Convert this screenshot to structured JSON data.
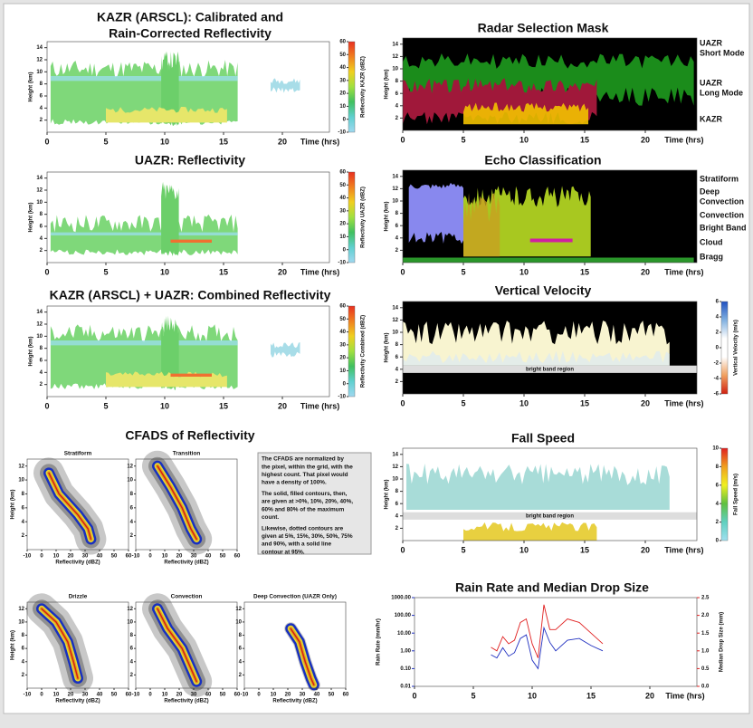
{
  "left_panels": [
    {
      "title": [
        "KAZR (ARSCL):  Calibrated and",
        "Rain-Corrected Reflectivity"
      ],
      "ylabel": "Height (km)",
      "yticks": [
        14,
        12,
        10,
        8,
        6,
        4,
        2
      ],
      "colorbar_label": "Reflectivity KAZR (dBZ)",
      "colorbar_ticks": [
        60,
        50,
        40,
        30,
        20,
        10,
        0,
        -10
      ],
      "xticks": [
        0,
        5,
        10,
        15,
        20
      ],
      "xlabel": "Time (hrs)"
    },
    {
      "title": [
        "UAZR:  Reflectivity"
      ],
      "ylabel": "Height (km)",
      "yticks": [
        14,
        12,
        10,
        8,
        6,
        4,
        2
      ],
      "colorbar_label": "Reflectivity UAZR (dBZ)",
      "colorbar_ticks": [
        60,
        50,
        40,
        30,
        20,
        10,
        0,
        -10
      ],
      "xticks": [
        0,
        5,
        10,
        15,
        20
      ],
      "xlabel": "Time (hrs)"
    },
    {
      "title": [
        "KAZR (ARSCL) + UAZR:  Combined Reflectivity"
      ],
      "ylabel": "Height (km)",
      "yticks": [
        14,
        12,
        10,
        8,
        6,
        4,
        2
      ],
      "colorbar_label": "Reflectivity Combined (dBZ)",
      "colorbar_ticks": [
        60,
        50,
        40,
        30,
        20,
        10,
        0,
        -10
      ],
      "xticks": [
        0,
        5,
        10,
        15,
        20
      ],
      "xlabel": "Time (hrs)"
    }
  ],
  "right_panels": [
    {
      "title": [
        "Radar Selection Mask"
      ],
      "ylabel": "Height (km)",
      "yticks": [
        14,
        12,
        10,
        8,
        6,
        4,
        2
      ],
      "xticks": [
        0,
        5,
        10,
        15,
        20
      ],
      "xlabel": "Time (hrs)",
      "legend": [
        {
          "label": [
            "UAZR",
            "Short Mode"
          ],
          "color": "#f2c200"
        },
        {
          "label": [
            "UAZR",
            "Long Mode"
          ],
          "color": "#a0183a"
        },
        {
          "label": [
            "KAZR"
          ],
          "color": "#1b8c1b"
        }
      ]
    },
    {
      "title": [
        "Echo Classification"
      ],
      "ylabel": "Height (km)",
      "yticks": [
        14,
        12,
        10,
        8,
        6,
        4,
        2
      ],
      "xticks": [
        0,
        5,
        10,
        15,
        20
      ],
      "xlabel": "Time (hrs)",
      "legend": [
        {
          "label": [
            "Stratiform"
          ],
          "color": "#66b82a"
        },
        {
          "label": [
            "Deep",
            "Convection"
          ],
          "color": "#f04a1e"
        },
        {
          "label": [
            "Convection"
          ],
          "color": "#f08a00"
        },
        {
          "label": [
            "Bright Band"
          ],
          "color": "#b01050"
        },
        {
          "label": [
            "Cloud"
          ],
          "color": "#8888ee"
        },
        {
          "label": [
            "Bragg"
          ],
          "color": "#2a962a"
        }
      ]
    },
    {
      "title": [
        "Vertical Velocity"
      ],
      "ylabel": "Height (km)",
      "yticks": [
        14,
        12,
        10,
        8,
        6,
        4,
        2
      ],
      "xticks": [
        0,
        5,
        10,
        15,
        20
      ],
      "xlabel": "Time (hrs)",
      "colorbar_label": "Vertical Velocity (m/s)",
      "colorbar_ticks": [
        6,
        4,
        2,
        0,
        -2,
        -4,
        -6
      ],
      "band_label": "bright band region"
    },
    {
      "title": [
        "Fall Speed"
      ],
      "ylabel": "Height (km)",
      "yticks": [
        14,
        12,
        10,
        8,
        6,
        4,
        2
      ],
      "xticks": [
        0,
        5,
        10,
        15,
        20
      ],
      "xlabel": "Time (hrs)",
      "colorbar_label": "Fall Speed (m/s)",
      "colorbar_ticks": [
        10,
        8,
        6,
        4,
        2,
        0
      ],
      "band_label": "bright band region"
    }
  ],
  "cfads": {
    "title": "CFADS of Reflectivity",
    "yticks": [
      12,
      10,
      8,
      6,
      4,
      2
    ],
    "xticks": [
      -10,
      0,
      10,
      20,
      30,
      40,
      50,
      60
    ],
    "xlabel": "Reflectivity (dBZ)",
    "ylabel": "Height (km)",
    "panels": [
      {
        "title": "Stratiform"
      },
      {
        "title": "Transition"
      },
      {
        "title": "Drizzle"
      },
      {
        "title": "Convection"
      },
      {
        "title": "Deep Convection (UAZR Only)"
      }
    ],
    "note": [
      [
        "The CFADS are normalized by",
        "the pixel, within the grid, with the",
        "highest count. That pixel would",
        "have a density of 100%."
      ],
      [
        "The solid, filled contours, then,",
        "are given at >0%, 10%, 20%, 40%,",
        "60% and 80% of the maximum",
        "count."
      ],
      [
        "Likewise, dotted contours are",
        "given at 5%, 15%, 30%, 50%, 75%",
        "and 90%, with a solid line",
        "contour at 95%."
      ]
    ]
  },
  "chart_data": {
    "type": "line",
    "title": "Rain Rate and Median Drop Size",
    "ylabel": "Rain Rate (mm/hr)",
    "y2label": "Median Drop Size (mm)",
    "xlabel": "Time (hrs)",
    "x": [
      6.5,
      7,
      7.5,
      8,
      8.5,
      9,
      9.5,
      10,
      10.5,
      11,
      11.5,
      12,
      13,
      14,
      15,
      16
    ],
    "series": [
      {
        "color": "#2030c0",
        "values": [
          0.6,
          0.4,
          1.5,
          0.5,
          0.8,
          5,
          8,
          0.3,
          0.1,
          20,
          3,
          1,
          4,
          5,
          2,
          1
        ]
      },
      {
        "color": "#e02020",
        "axis": "y2",
        "values": [
          1.1,
          1.0,
          1.4,
          1.2,
          1.3,
          1.8,
          1.9,
          1.2,
          0.8,
          2.3,
          1.6,
          1.6,
          1.9,
          1.8,
          1.5,
          1.2
        ]
      }
    ],
    "xlim": [
      0,
      24
    ],
    "xticks": [
      0,
      5,
      10,
      15,
      20
    ],
    "ylim": [
      0.01,
      1000
    ],
    "log_scale": true,
    "yticks": [
      {
        "value": 1000,
        "label": "1000.00"
      },
      {
        "value": 100,
        "label": "100.00"
      },
      {
        "value": 10,
        "label": "10.00"
      },
      {
        "value": 1,
        "label": "1.00"
      },
      {
        "value": 0.1,
        "label": "0.10"
      },
      {
        "value": 0.01,
        "label": "0.01"
      }
    ],
    "y2lim": [
      0,
      2.5
    ],
    "y2ticks": [
      2.5,
      {
        "value": 2,
        "label": "2.0"
      },
      1.5,
      {
        "value": 1,
        "label": "1.0"
      },
      0.5,
      {
        "value": 0,
        "label": "0.0"
      }
    ]
  }
}
